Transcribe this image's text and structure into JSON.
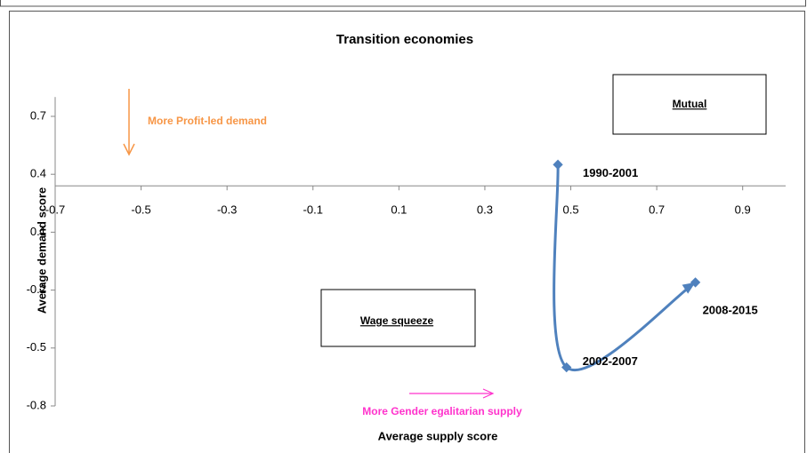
{
  "chart_data": {
    "type": "line",
    "title": "Transition economies",
    "xlabel": "Average supply score",
    "ylabel": "Average demand score",
    "x": [
      0.47,
      0.49,
      0.79
    ],
    "series": [
      {
        "color": "#4f81bd",
        "values": [
          0.45,
          -0.6,
          -0.16
        ],
        "point_labels": [
          "1990-2001",
          "2002-2007",
          "2008-2015"
        ]
      }
    ],
    "xlim": [
      -0.7,
      1.0
    ],
    "xticks": [
      -0.7,
      -0.5,
      -0.3,
      -0.1,
      0.1,
      0.3,
      0.5,
      0.7,
      0.9
    ],
    "ylim": [
      -0.8,
      0.8
    ],
    "yticks": [
      0.7,
      0.4,
      0.1,
      -0.2,
      -0.5,
      -0.8
    ],
    "x_axis_crosses": 0.34,
    "annotations": {
      "profit": "More Profit-led demand",
      "gender": "More Gender egalitarian supply",
      "mutual": "Mutual",
      "wage": "Wage squeeze"
    }
  }
}
